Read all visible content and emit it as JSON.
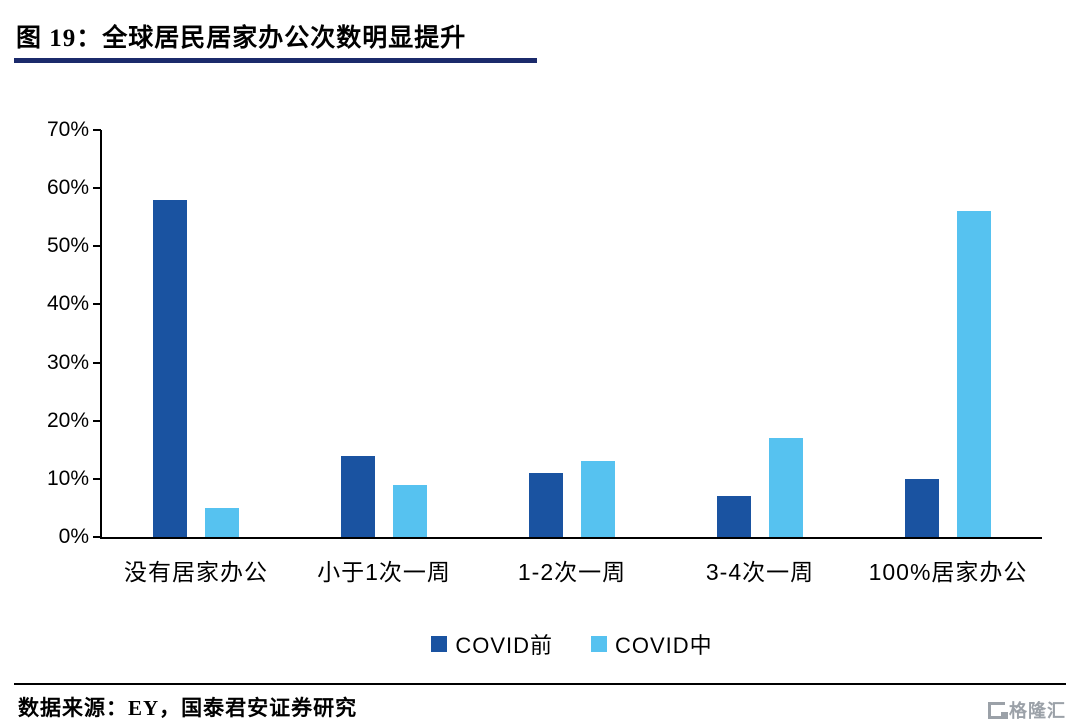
{
  "header": {
    "title": "图 19：全球居民居家办公次数明显提升",
    "rule_color": "#1b2a6b"
  },
  "chart_data": {
    "type": "bar",
    "title": "全球居民居家办公次数明显提升",
    "categories": [
      "没有居家办公",
      "小于1次一周",
      "1-2次一周",
      "3-4次一周",
      "100%居家办公"
    ],
    "series": [
      {
        "name": "COVID前",
        "color": "#1a53a1",
        "values": [
          58,
          14,
          11,
          7,
          10
        ]
      },
      {
        "name": "COVID中",
        "color": "#56c2f0",
        "values": [
          5,
          9,
          13,
          17,
          56
        ]
      }
    ],
    "ylim": [
      0,
      70
    ],
    "yticks": [
      0,
      10,
      20,
      30,
      40,
      50,
      60,
      70
    ],
    "ytick_suffix": "%",
    "xlabel": "",
    "ylabel": "",
    "grid": false,
    "legend_position": "bottom"
  },
  "footer": {
    "source": "数据来源：EY，国泰君安证券研究"
  },
  "watermark": {
    "text": "格隆汇"
  }
}
